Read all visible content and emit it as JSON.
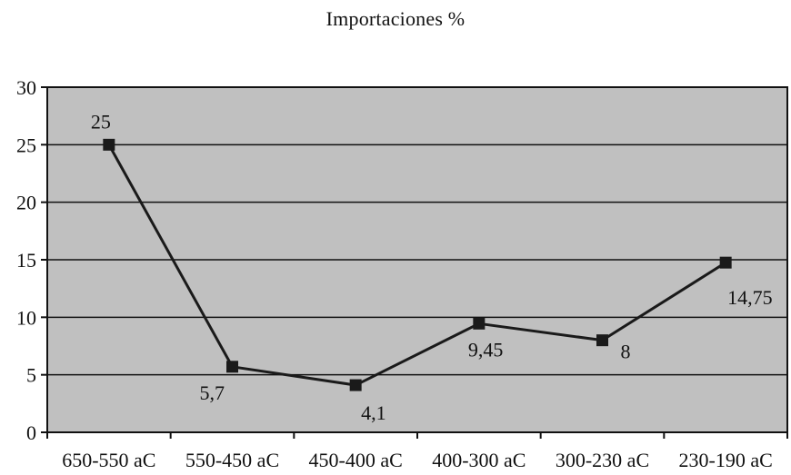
{
  "chart_data": {
    "type": "line",
    "title": "Importaciones %",
    "xlabel": "",
    "ylabel": "",
    "categories": [
      "650-550 aC",
      "550-450 aC",
      "450-400 aC",
      "400-300 aC",
      "300-230 aC",
      "230-190 aC"
    ],
    "series": [
      {
        "values": [
          25,
          5.7,
          4.1,
          9.45,
          8,
          14.75
        ],
        "data_labels": [
          "25",
          "5,7",
          "4,1",
          "9,45",
          "8",
          "14,75"
        ],
        "marker": "square",
        "color": "#1a1a1a"
      }
    ],
    "ylim": [
      0,
      30
    ],
    "yticks": [
      0,
      5,
      10,
      15,
      20,
      25,
      30
    ],
    "grid": true,
    "plot_background": "#c0c0c0",
    "legend": "none"
  }
}
